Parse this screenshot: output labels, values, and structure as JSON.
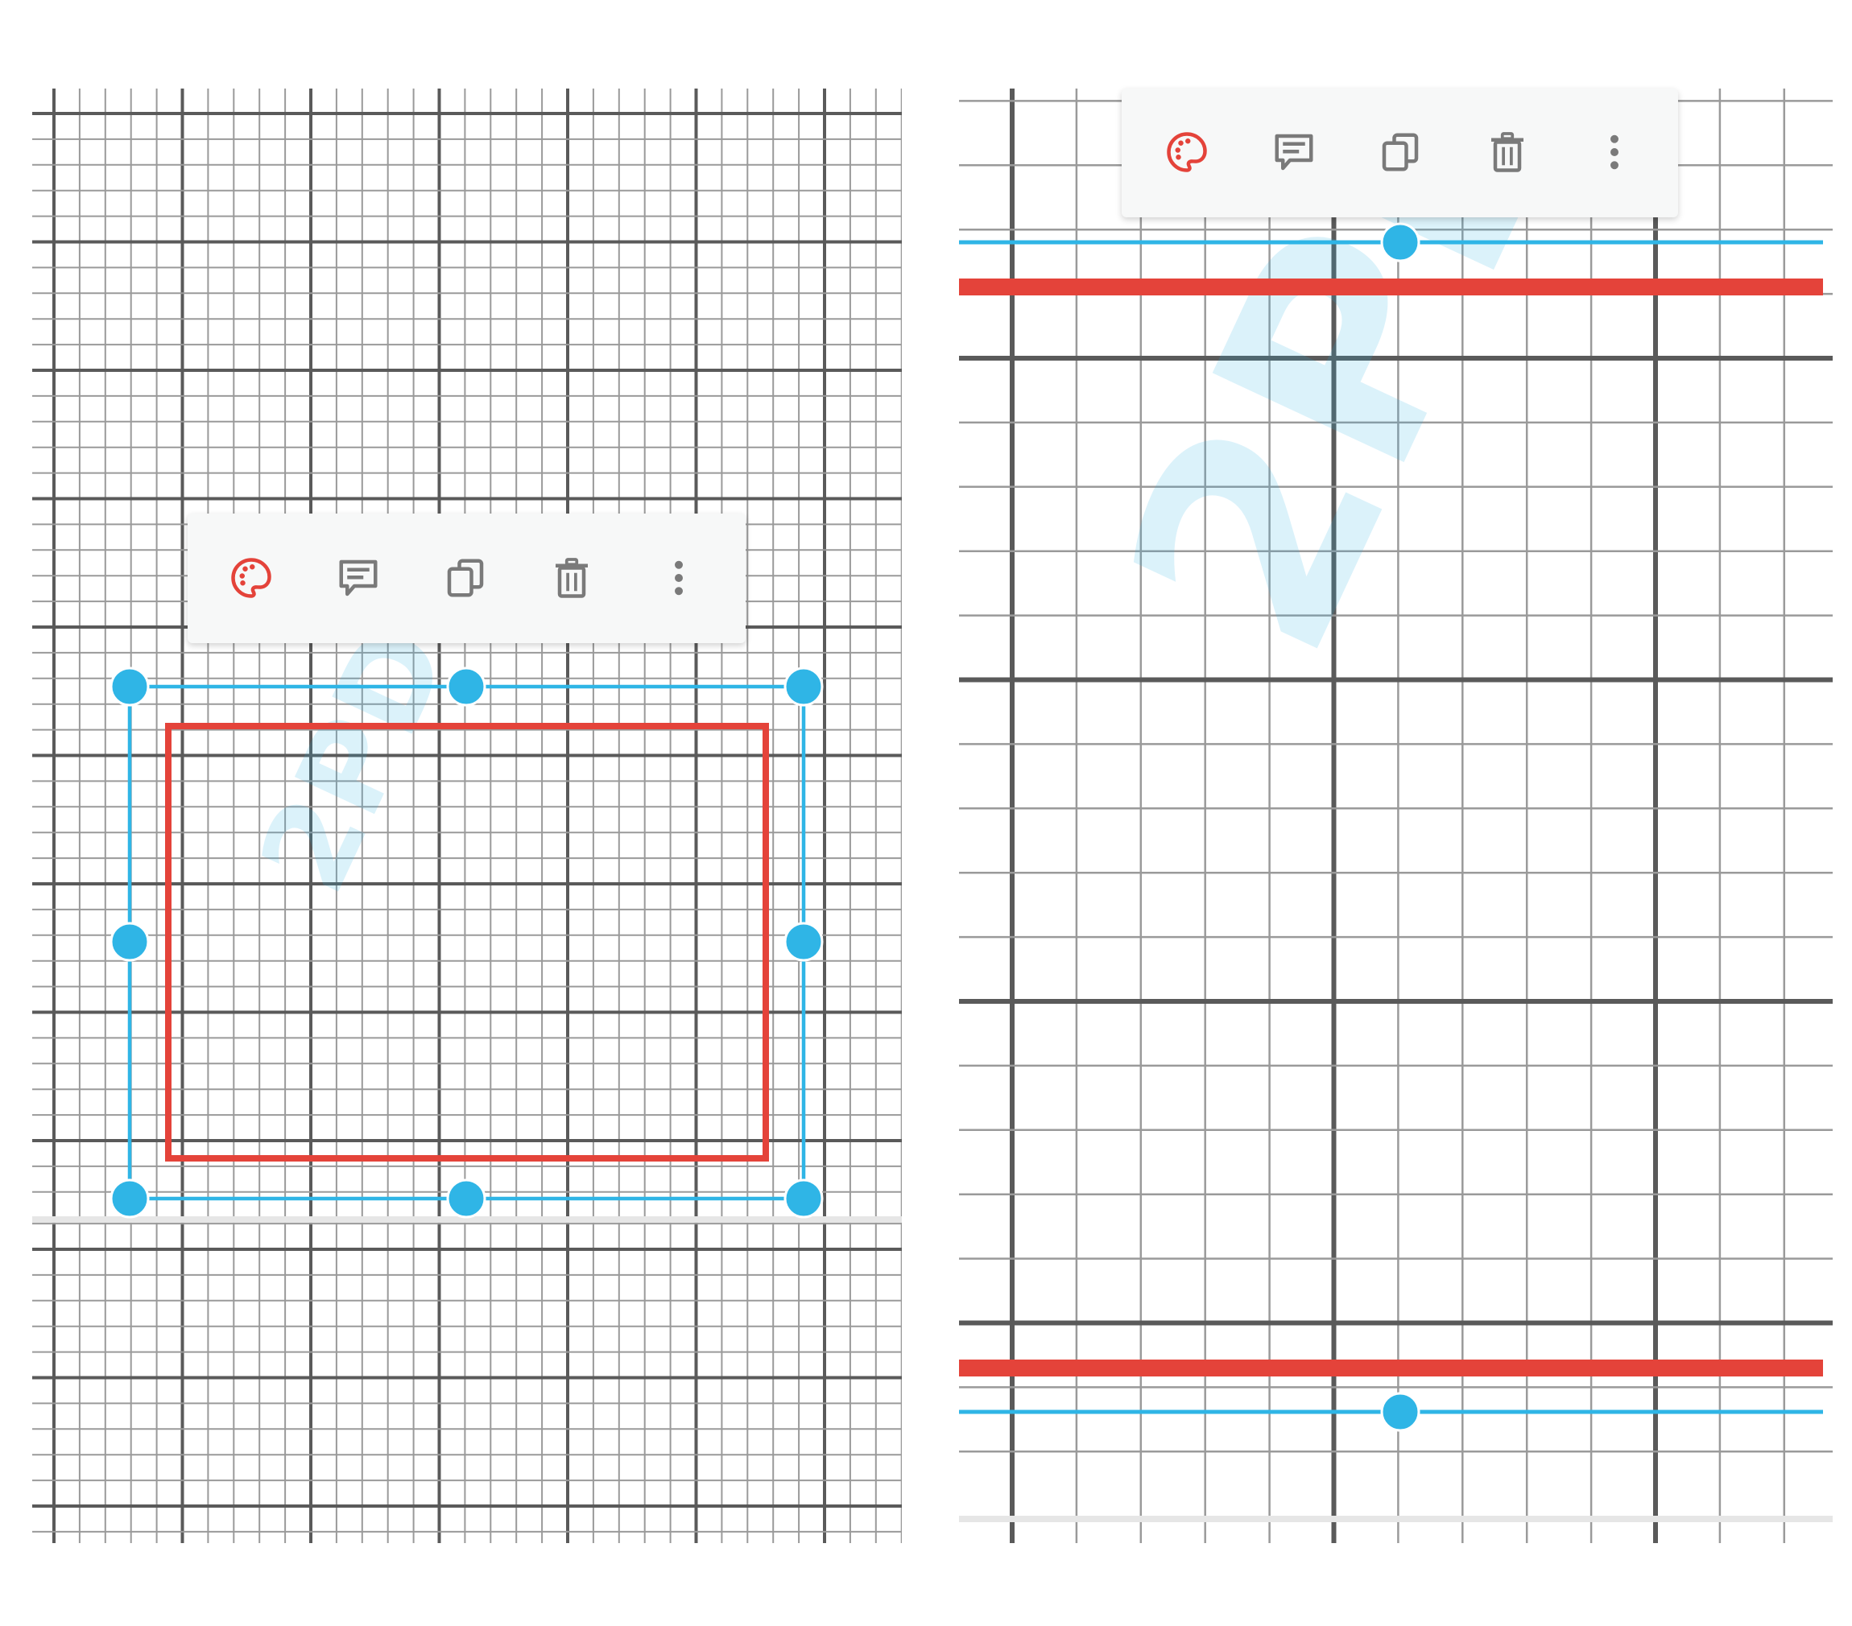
{
  "watermark": "2PDF",
  "colors": {
    "accent_red": "#e4433a",
    "selection_blue": "#2fb5e6",
    "grid_major": "#5a5a5a",
    "grid_minor": "#9a9a9a",
    "icon_gray": "#7a7a7a",
    "toolbar_bg": "#f7f8f8"
  },
  "left_view": {
    "shape": "rectangle",
    "toolbar": {
      "items": [
        {
          "icon": "palette-icon",
          "action": "style"
        },
        {
          "icon": "comment-icon",
          "action": "comment"
        },
        {
          "icon": "copy-icon",
          "action": "duplicate"
        },
        {
          "icon": "trash-icon",
          "action": "delete"
        },
        {
          "icon": "more-vertical-icon",
          "action": "more"
        }
      ]
    }
  },
  "right_view": {
    "shape": "rectangle (zoomed)",
    "toolbar": {
      "items": [
        {
          "icon": "palette-icon",
          "action": "style"
        },
        {
          "icon": "comment-icon",
          "action": "comment"
        },
        {
          "icon": "copy-icon",
          "action": "duplicate"
        },
        {
          "icon": "trash-icon",
          "action": "delete"
        },
        {
          "icon": "more-vertical-icon",
          "action": "more"
        }
      ]
    }
  }
}
